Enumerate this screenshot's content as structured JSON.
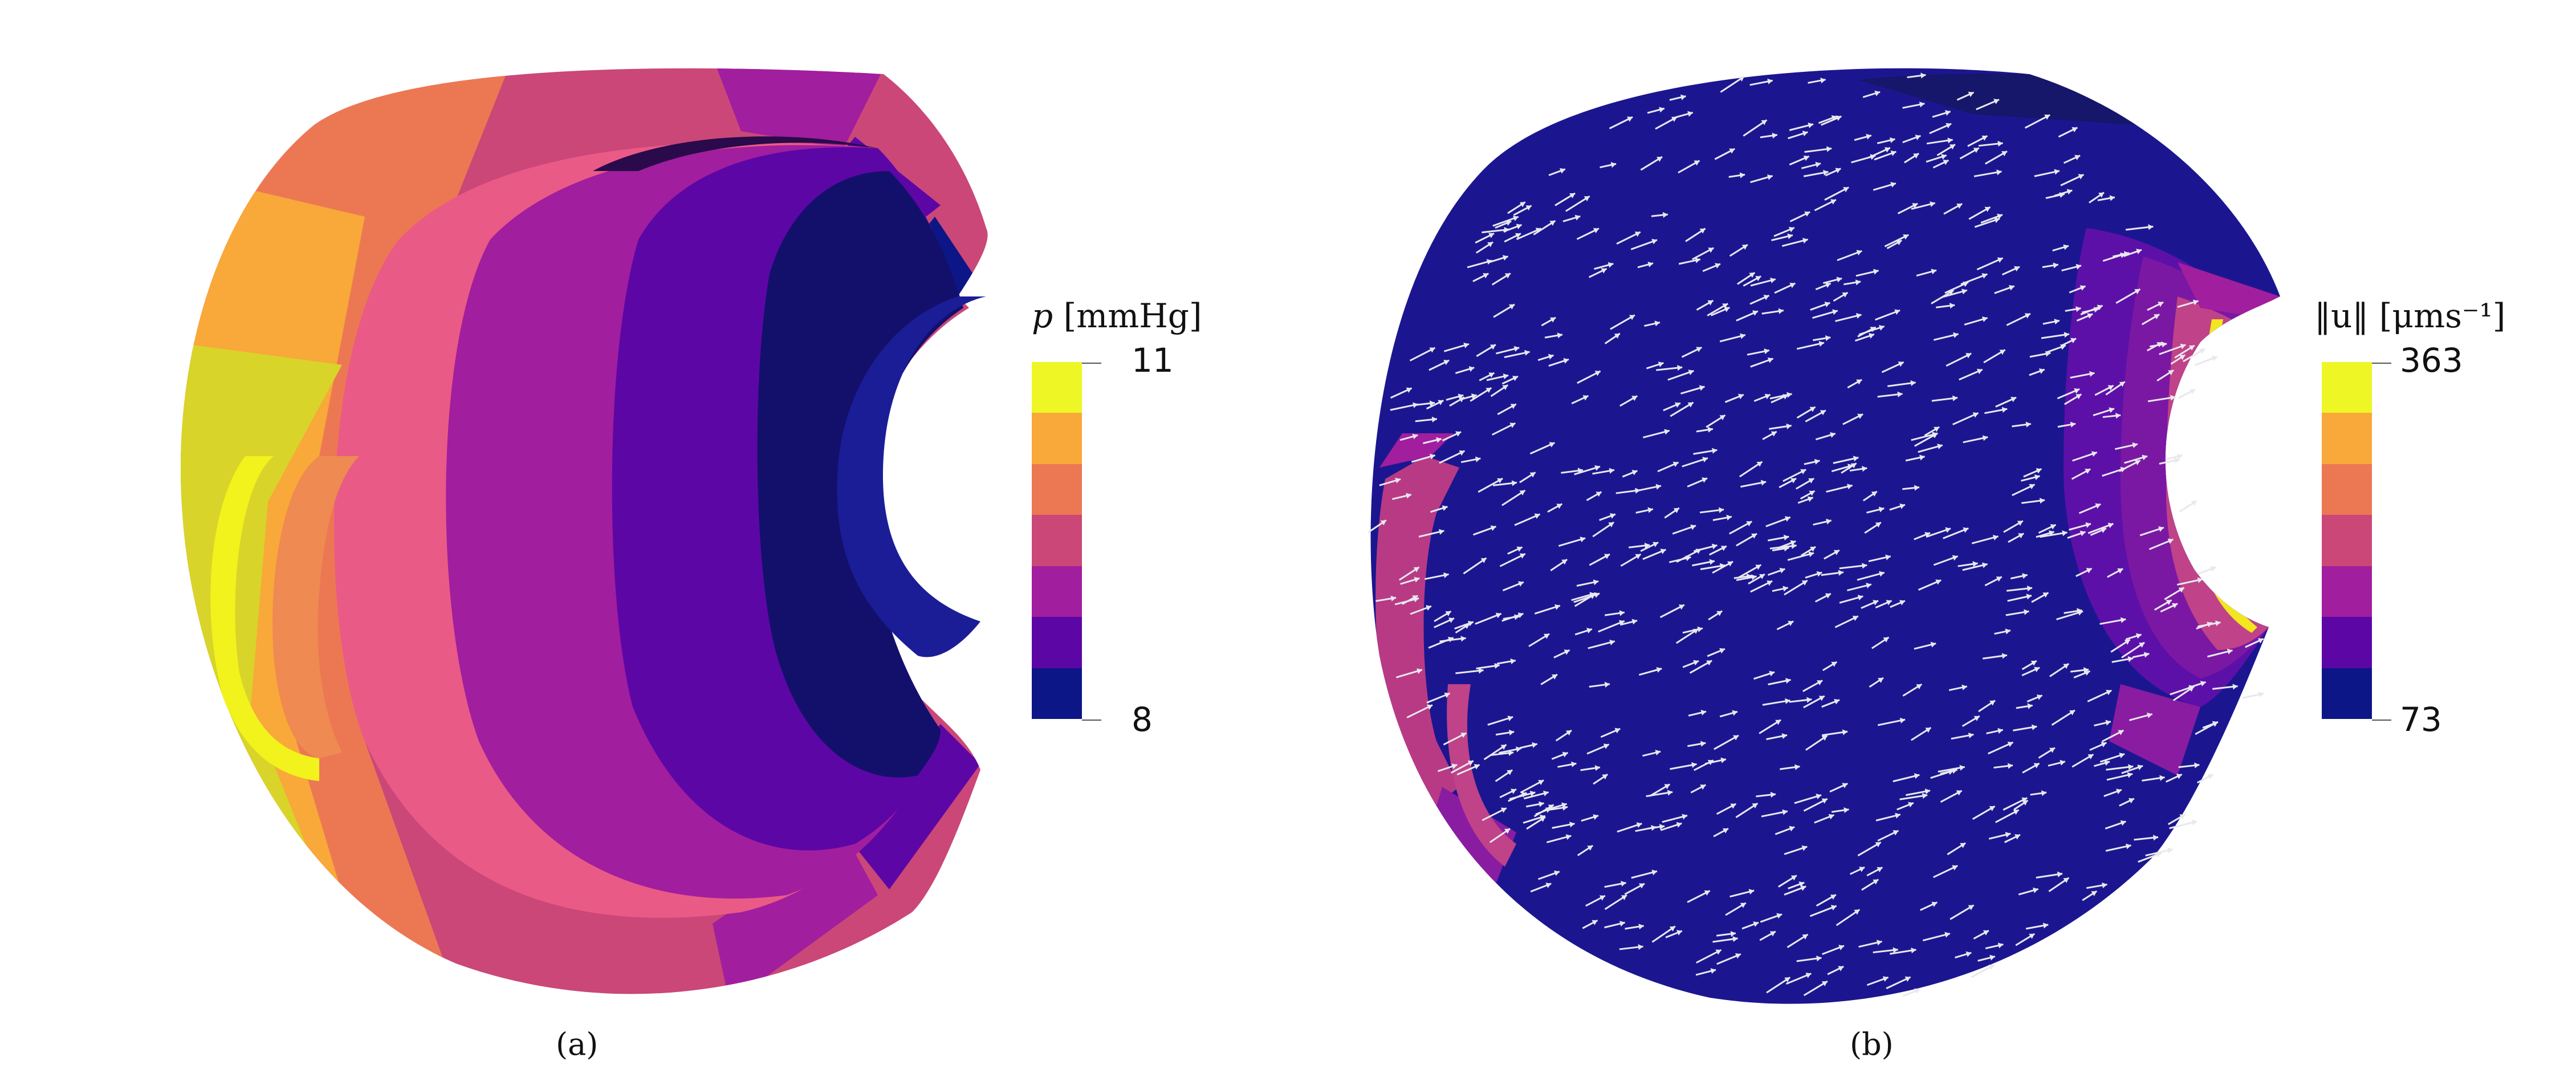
{
  "panel_a": {
    "caption": "(a)",
    "colorbar": {
      "title_var": "p",
      "title_unit": " [mmHg]",
      "max": "11",
      "min": "8"
    }
  },
  "panel_b": {
    "caption": "(b)",
    "colorbar": {
      "title_var": "‖u‖",
      "title_unit": " [μms⁻¹]",
      "max": "363",
      "min": "73"
    }
  },
  "colormap": [
    "#eef626",
    "#f9a83a",
    "#ec7853",
    "#ca4778",
    "#a11e9e",
    "#5d06a6",
    "#0d1687"
  ],
  "colors": {
    "arrow": "#e8e8ee",
    "background": "#ffffff"
  }
}
